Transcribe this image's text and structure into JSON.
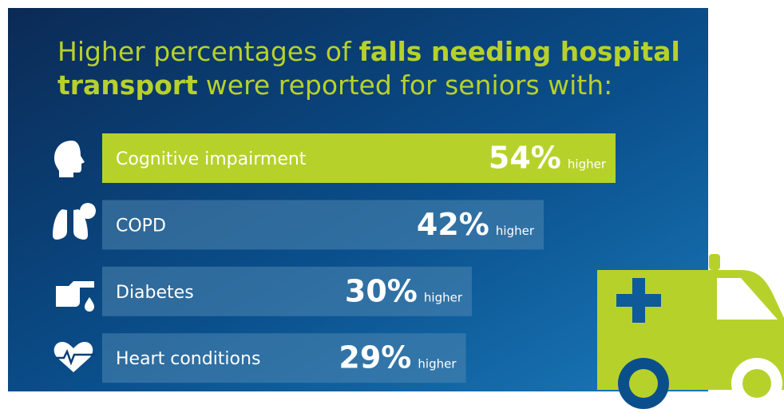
{
  "chart_data": {
    "type": "bar",
    "orientation": "horizontal",
    "title": {
      "line1": [
        "Higher percentages of",
        "falls needing hospital"
      ],
      "line2": [
        "transport",
        "were reported for seniors with:"
      ]
    },
    "categories": [
      "Cognitive impairment",
      "COPD",
      "Diabetes",
      "Heart conditions"
    ],
    "values": [
      54,
      42,
      30,
      29
    ],
    "value_labels": [
      "54%",
      "42%",
      "30%",
      "29%"
    ],
    "value_suffix": "higher",
    "colors": [
      "#b7d12b",
      "#4f86b0",
      "#4f86b0",
      "#4f86b0"
    ]
  }
}
